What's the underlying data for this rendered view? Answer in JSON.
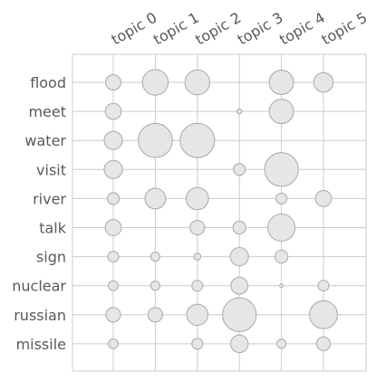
{
  "chart_data": {
    "type": "scatter",
    "variant": "bubble-matrix",
    "title": "",
    "xlabel": "",
    "ylabel": "",
    "grid": true,
    "legend": "none",
    "colors": {
      "bubble_fill": "#e6e6e6",
      "bubble_stroke": "#a8a8a8",
      "grid": "#cccccc",
      "label": "#595959"
    },
    "topics": [
      "topic 0",
      "topic 1",
      "topic 2",
      "topic 3",
      "topic 4",
      "topic 5"
    ],
    "words": [
      "flood",
      "meet",
      "water",
      "visit",
      "river",
      "talk",
      "sign",
      "nuclear",
      "russian",
      "missile"
    ],
    "weights": [
      [
        0.2,
        0.56,
        0.52,
        0.0,
        0.5,
        0.32
      ],
      [
        0.22,
        0.0,
        0.0,
        0.02,
        0.5,
        0.0
      ],
      [
        0.28,
        0.98,
        1.0,
        0.0,
        0.0,
        0.0
      ],
      [
        0.28,
        0.0,
        0.0,
        0.12,
        0.96,
        0.0
      ],
      [
        0.12,
        0.36,
        0.42,
        0.0,
        0.1,
        0.22
      ],
      [
        0.22,
        0.0,
        0.18,
        0.14,
        0.62,
        0.0
      ],
      [
        0.1,
        0.07,
        0.04,
        0.28,
        0.14,
        0.0
      ],
      [
        0.08,
        0.07,
        0.1,
        0.24,
        0.01,
        0.1
      ],
      [
        0.18,
        0.18,
        0.38,
        0.96,
        0.0,
        0.66
      ],
      [
        0.08,
        0.0,
        0.1,
        0.26,
        0.07,
        0.16
      ]
    ]
  }
}
